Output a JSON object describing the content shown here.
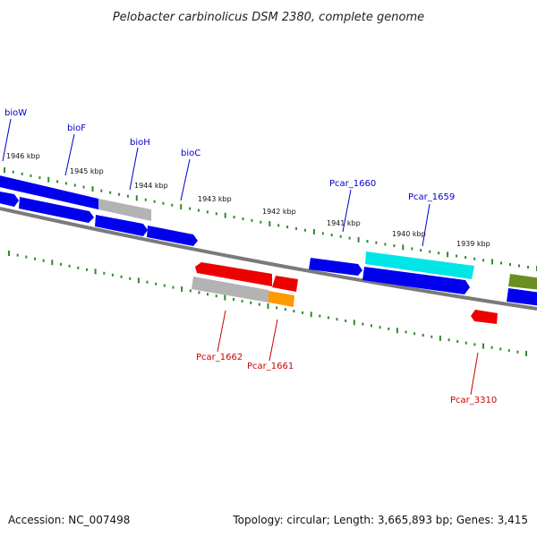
{
  "title": "Pelobacter carbinolicus DSM 2380, complete genome",
  "footer": {
    "accession": "Accession: NC_007498",
    "summary": "Topology: circular; Length: 3,665,893 bp; Genes: 3,415"
  },
  "colors": {
    "backbone": "#7a7a7a",
    "tick": "#2e8b2e",
    "forward_gene": "#0000ee",
    "reverse_gene": "#ee0000",
    "pseudo": "#b3b3b3",
    "cyan_gene": "#00e5e5",
    "orange_gene": "#ff9900",
    "olive_gene": "#6b8e23",
    "top_label": "#0000cc",
    "bottom_label": "#cc0000"
  },
  "scale_labels": [
    "1946 kbp",
    "1945 kbp",
    "1944 kbp",
    "1943 kbp",
    "1942 kbp",
    "1941 kbp",
    "1940 kbp",
    "1939 kbp"
  ],
  "top_labels": [
    "bioW",
    "bioF",
    "bioH",
    "bioC",
    "Pcar_1660",
    "Pcar_1659"
  ],
  "bottom_labels": [
    "Pcar_1662",
    "Pcar_1661",
    "Pcar_3310"
  ]
}
